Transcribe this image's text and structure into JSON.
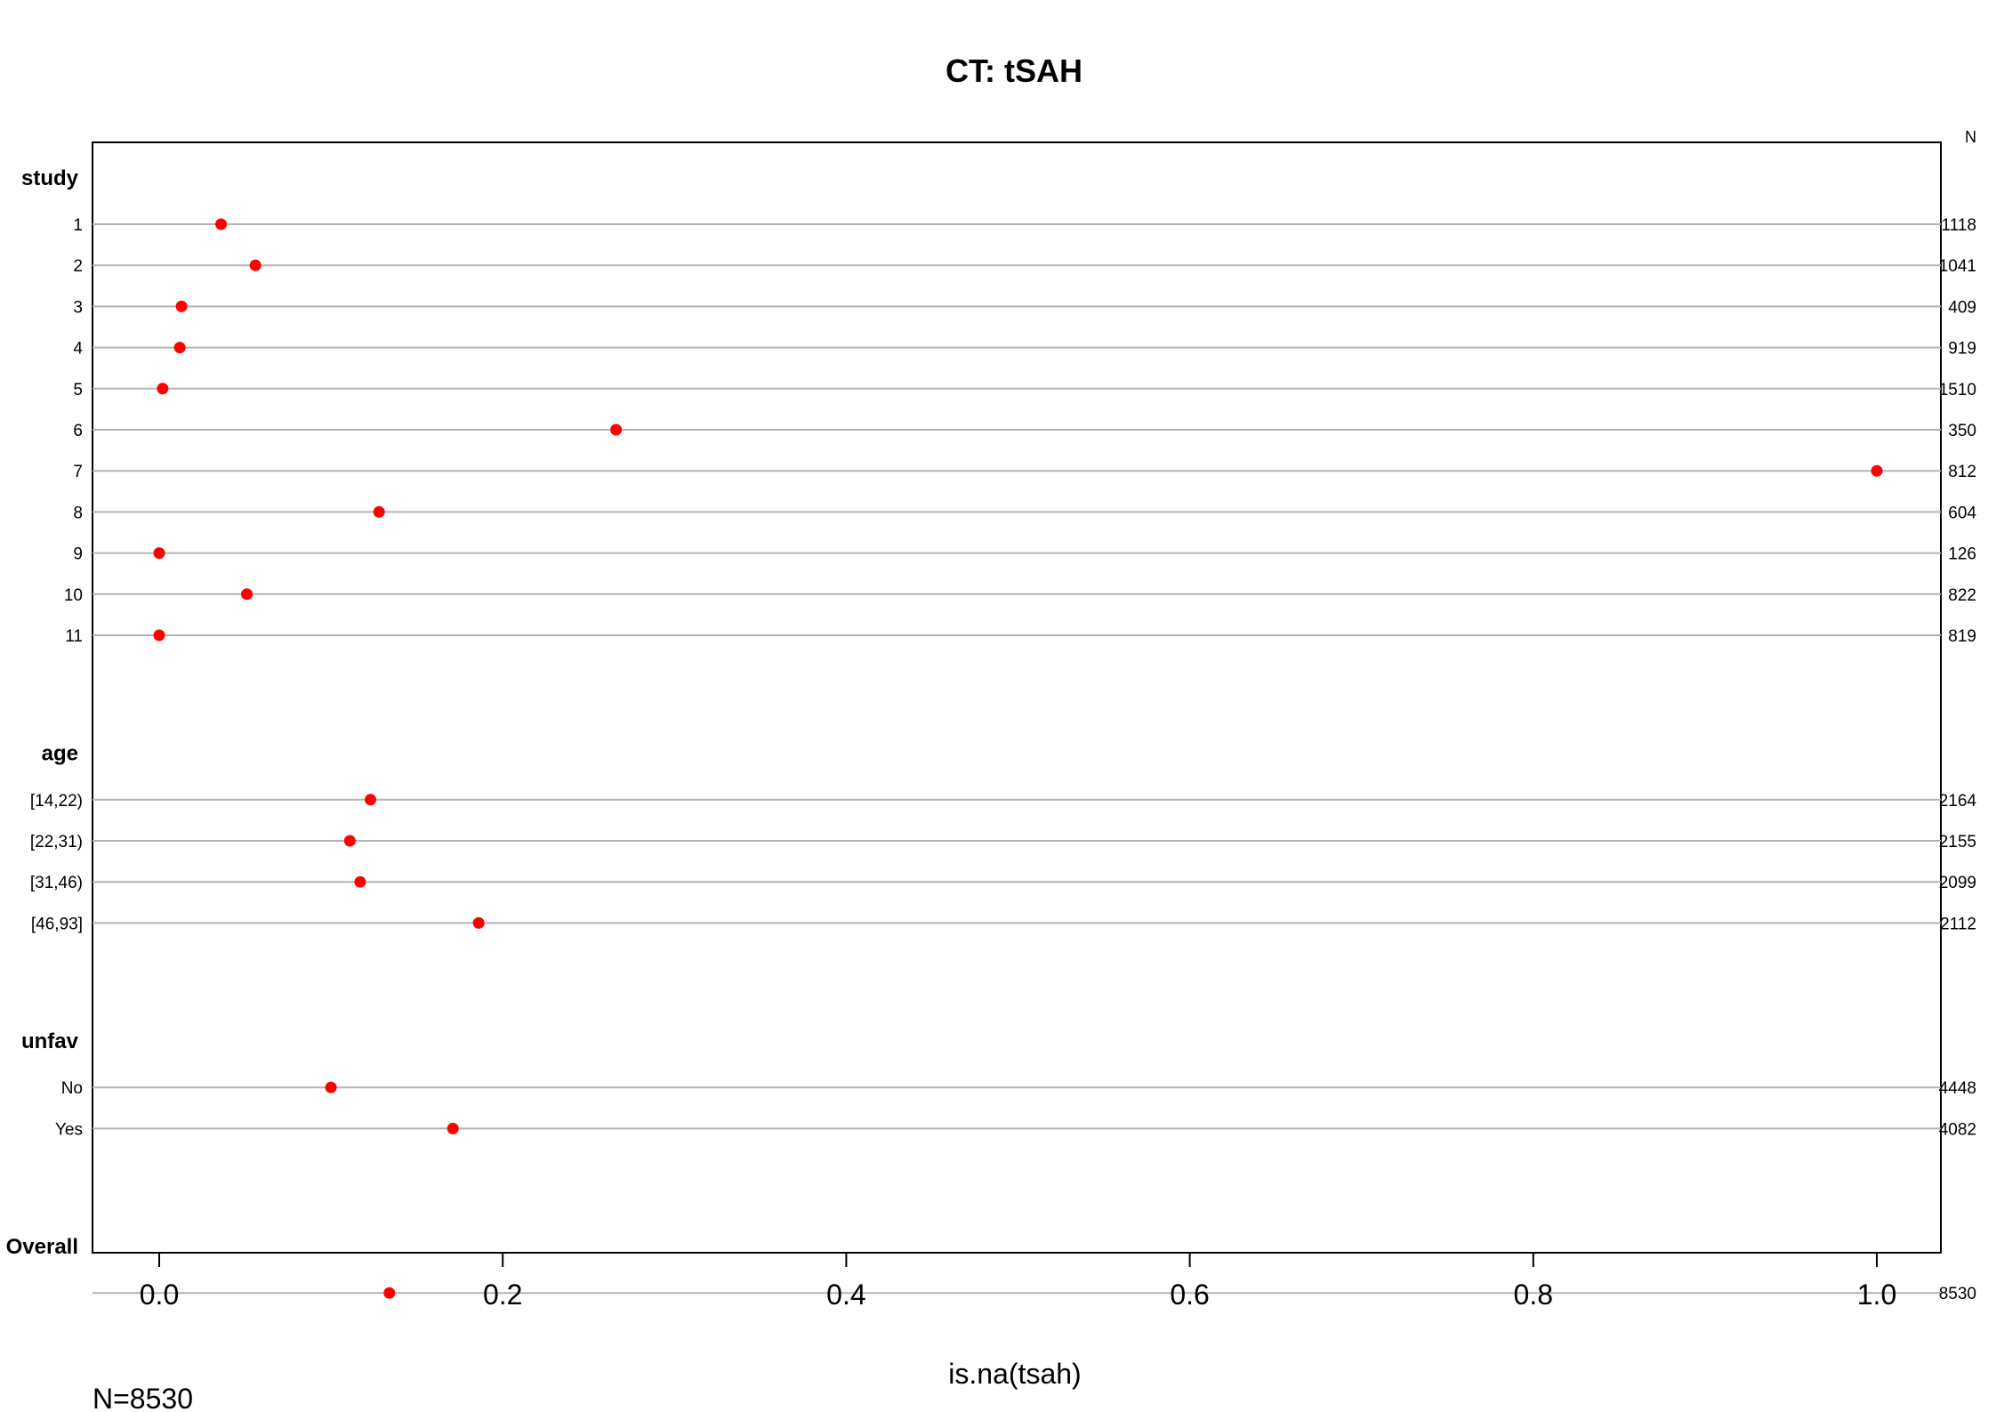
{
  "chart_data": {
    "type": "scatter",
    "title": "CT: tSAH",
    "xlabel": "is.na(tsah)",
    "ylabel": "",
    "xlim": [
      -0.04,
      1.04
    ],
    "x_ticks": [
      "0.0",
      "0.2",
      "0.4",
      "0.6",
      "0.8",
      "1.0"
    ],
    "grid": "horizontal reference lines per row",
    "n_column_label": "N",
    "footnote": "N=8530",
    "point_color": "#ff0000",
    "groups": [
      {
        "name": "study",
        "rows": [
          {
            "label": "1",
            "value": 0.036,
            "n": "1118"
          },
          {
            "label": "2",
            "value": 0.056,
            "n": "1041"
          },
          {
            "label": "3",
            "value": 0.013,
            "n": "409"
          },
          {
            "label": "4",
            "value": 0.012,
            "n": "919"
          },
          {
            "label": "5",
            "value": 0.002,
            "n": "1510"
          },
          {
            "label": "6",
            "value": 0.266,
            "n": "350"
          },
          {
            "label": "7",
            "value": 1.0,
            "n": "812"
          },
          {
            "label": "8",
            "value": 0.128,
            "n": "604"
          },
          {
            "label": "9",
            "value": 0.0,
            "n": "126"
          },
          {
            "label": "10",
            "value": 0.051,
            "n": "822"
          },
          {
            "label": "11",
            "value": 0.0,
            "n": "819"
          }
        ]
      },
      {
        "name": "age",
        "rows": [
          {
            "label": "[14,22)",
            "value": 0.123,
            "n": "2164"
          },
          {
            "label": "[22,31)",
            "value": 0.111,
            "n": "2155"
          },
          {
            "label": "[31,46)",
            "value": 0.117,
            "n": "2099"
          },
          {
            "label": "[46,93]",
            "value": 0.186,
            "n": "2112"
          }
        ]
      },
      {
        "name": "unfav",
        "rows": [
          {
            "label": "No",
            "value": 0.1,
            "n": "4448"
          },
          {
            "label": "Yes",
            "value": 0.171,
            "n": "4082"
          }
        ]
      },
      {
        "name": "Overall",
        "rows": [
          {
            "label": "",
            "value": 0.134,
            "n": "8530"
          }
        ]
      }
    ]
  }
}
